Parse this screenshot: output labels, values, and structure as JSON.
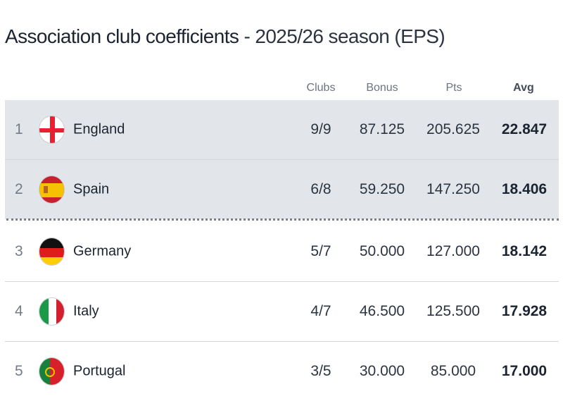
{
  "title": {
    "main": "Association club coefficients",
    "sub": " - 2025/26 season (EPS)"
  },
  "headers": {
    "clubs": "Clubs",
    "bonus": "Bonus",
    "pts": "Pts",
    "avg": "Avg"
  },
  "rows": [
    {
      "rank": "1",
      "country": "England",
      "flag": "england-flag",
      "clubs": "9/9",
      "bonus": "87.125",
      "pts": "205.625",
      "avg": "22.847"
    },
    {
      "rank": "2",
      "country": "Spain",
      "flag": "spain-flag",
      "clubs": "6/8",
      "bonus": "59.250",
      "pts": "147.250",
      "avg": "18.406"
    },
    {
      "rank": "3",
      "country": "Germany",
      "flag": "germany-flag",
      "clubs": "5/7",
      "bonus": "50.000",
      "pts": "127.000",
      "avg": "18.142"
    },
    {
      "rank": "4",
      "country": "Italy",
      "flag": "italy-flag",
      "clubs": "4/7",
      "bonus": "46.500",
      "pts": "125.500",
      "avg": "17.928"
    },
    {
      "rank": "5",
      "country": "Portugal",
      "flag": "portugal-flag",
      "clubs": "3/5",
      "bonus": "30.000",
      "pts": "85.000",
      "avg": "17.000"
    }
  ],
  "colors": {
    "highlight": "#e2e6ea",
    "text": "#1b2430",
    "muted": "#737c87"
  }
}
